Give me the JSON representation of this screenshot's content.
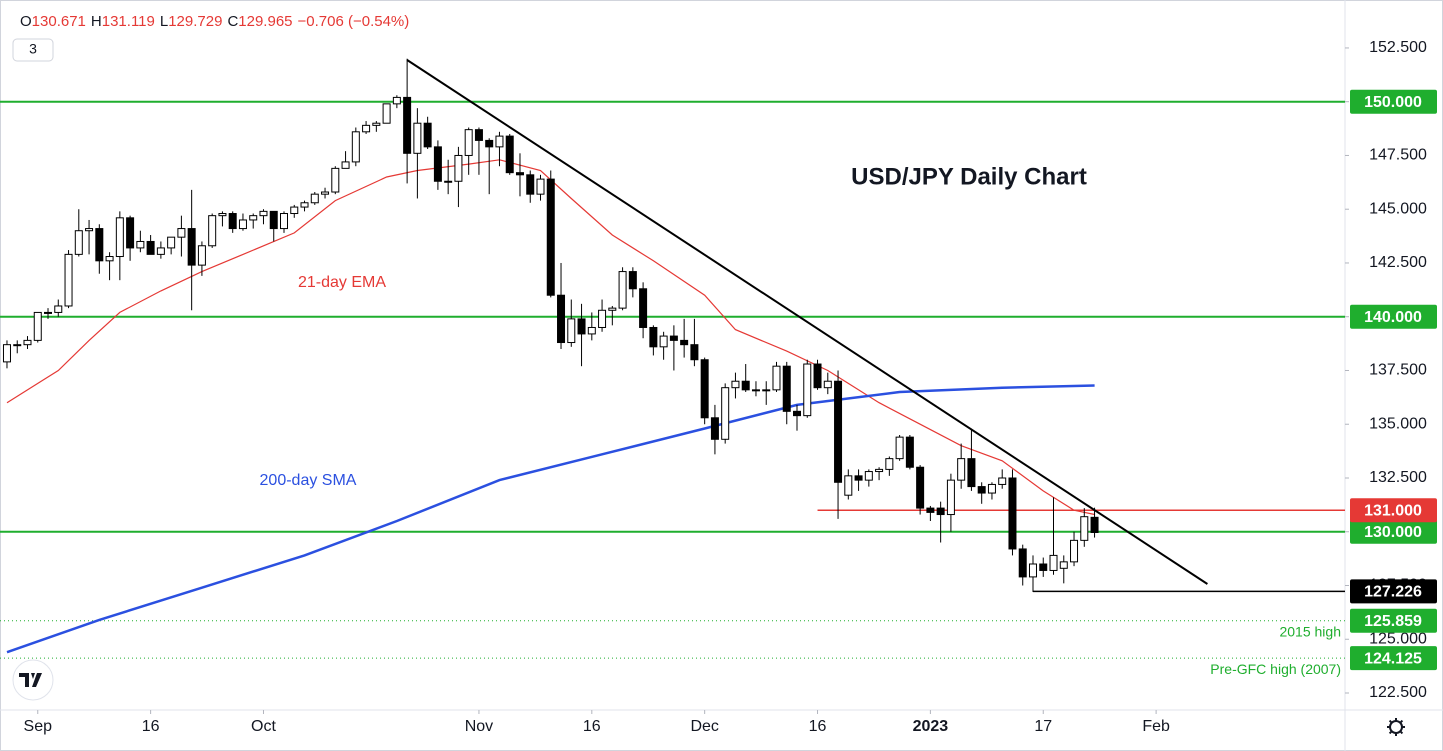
{
  "chart_data": {
    "type": "candlestick",
    "title": "USD/JPY Daily Chart",
    "legend_text": [
      "O",
      "130.671",
      "H",
      "131.119",
      "L",
      "129.729",
      "C",
      "129.965",
      "−0.706 (−0.54%)"
    ],
    "badge": "3",
    "up_color": "#ffffff",
    "down_color": "#000000",
    "open": [
      137.9,
      138.7,
      138.7,
      138.9,
      140.2,
      140.2,
      140.5,
      142.9,
      144.0,
      144.1,
      142.6,
      142.8,
      144.6,
      143.2,
      143.5,
      142.9,
      143.2,
      143.7,
      144.1,
      142.4,
      143.3,
      144.7,
      144.8,
      144.1,
      144.5,
      144.7,
      144.9,
      144.1,
      144.8,
      145.1,
      145.3,
      145.7,
      145.8,
      146.9,
      147.2,
      148.6,
      148.9,
      149.0,
      149.9,
      150.2,
      147.6,
      149.0,
      147.9,
      146.3,
      146.3,
      147.5,
      148.7,
      148.2,
      147.9,
      148.4,
      146.7,
      146.6,
      145.7,
      146.4,
      141.0,
      138.8,
      139.9,
      139.2,
      139.5,
      140.3,
      140.4,
      142.1,
      141.3,
      139.5,
      138.6,
      139.1,
      138.9,
      138.7,
      138.0,
      135.3,
      134.3,
      136.7,
      137.0,
      136.6,
      136.6,
      136.6,
      137.7,
      135.6,
      135.4,
      137.8,
      136.7,
      137.0,
      131.7,
      132.6,
      132.4,
      132.8,
      132.9,
      133.4,
      134.4,
      133.0,
      131.1,
      131.1,
      130.8,
      132.4,
      133.4,
      132.1,
      131.8,
      132.2,
      132.5,
      129.2,
      127.9,
      128.5,
      128.2,
      128.3,
      128.6,
      129.6,
      130.671
    ],
    "high": [
      138.9,
      138.9,
      139.1,
      140.2,
      140.4,
      140.8,
      143.1,
      145.0,
      144.5,
      144.3,
      143.0,
      144.9,
      144.7,
      144.0,
      143.8,
      143.5,
      143.7,
      144.7,
      145.9,
      143.5,
      144.8,
      144.9,
      144.9,
      144.8,
      144.8,
      145.0,
      144.9,
      144.9,
      145.2,
      145.4,
      145.8,
      146.0,
      147.0,
      147.7,
      148.8,
      149.1,
      149.1,
      149.9,
      150.3,
      152.0,
      149.7,
      149.3,
      148.2,
      147.3,
      147.9,
      148.8,
      148.8,
      148.3,
      148.6,
      148.5,
      147.6,
      146.8,
      146.6,
      146.8,
      142.5,
      140.8,
      140.6,
      140.2,
      140.8,
      140.5,
      142.3,
      142.3,
      141.6,
      139.6,
      139.3,
      139.6,
      139.9,
      139.9,
      138.1,
      135.9,
      136.9,
      137.4,
      137.8,
      137.0,
      137.0,
      137.9,
      137.9,
      135.9,
      138.0,
      138.0,
      137.4,
      137.5,
      132.9,
      132.9,
      132.9,
      133.0,
      133.5,
      134.5,
      134.5,
      133.1,
      131.2,
      131.4,
      132.7,
      134.1,
      134.8,
      132.3,
      132.3,
      132.9,
      132.9,
      129.4,
      128.9,
      128.8,
      131.6,
      128.9,
      130.0,
      131.1,
      131.119
    ],
    "low": [
      137.6,
      138.3,
      138.5,
      138.8,
      139.9,
      140.0,
      140.4,
      142.8,
      142.9,
      142.0,
      141.7,
      141.7,
      142.6,
      143.0,
      142.9,
      142.7,
      142.9,
      142.8,
      140.3,
      141.9,
      143.2,
      144.2,
      143.9,
      144.0,
      144.1,
      144.3,
      143.5,
      143.9,
      144.6,
      144.9,
      145.2,
      145.5,
      145.7,
      146.9,
      147.0,
      148.5,
      148.6,
      149.0,
      149.7,
      146.2,
      145.5,
      147.8,
      145.9,
      145.7,
      145.1,
      146.6,
      146.6,
      145.7,
      147.0,
      146.6,
      145.6,
      145.3,
      145.4,
      140.9,
      138.5,
      138.6,
      137.7,
      138.9,
      139.3,
      139.6,
      140.3,
      140.9,
      139.0,
      138.2,
      138.0,
      137.5,
      138.1,
      137.7,
      135.0,
      133.6,
      134.1,
      136.2,
      136.5,
      136.3,
      135.9,
      136.5,
      135.0,
      134.7,
      135.3,
      136.6,
      136.4,
      130.6,
      131.5,
      131.9,
      132.1,
      132.4,
      132.6,
      133.3,
      132.9,
      130.8,
      130.5,
      129.5,
      130.0,
      132.0,
      131.9,
      131.3,
      131.5,
      132.0,
      128.9,
      127.5,
      127.2,
      127.9,
      128.0,
      127.6,
      128.4,
      129.3,
      129.729
    ],
    "close": [
      138.7,
      138.7,
      138.9,
      140.2,
      140.2,
      140.5,
      142.9,
      144.0,
      144.1,
      142.6,
      142.8,
      144.6,
      143.2,
      143.5,
      142.9,
      143.2,
      143.7,
      144.1,
      142.4,
      143.3,
      144.7,
      144.8,
      144.1,
      144.5,
      144.7,
      144.9,
      144.1,
      144.8,
      145.1,
      145.3,
      145.7,
      145.8,
      146.9,
      147.2,
      148.6,
      148.9,
      149.0,
      149.9,
      150.2,
      147.6,
      149.0,
      147.9,
      146.3,
      146.3,
      147.5,
      148.7,
      148.2,
      147.9,
      148.4,
      146.7,
      146.6,
      145.7,
      146.4,
      141.0,
      138.8,
      139.9,
      139.2,
      139.5,
      140.3,
      140.4,
      142.1,
      141.3,
      139.5,
      138.6,
      139.1,
      138.9,
      138.7,
      138.0,
      135.3,
      134.3,
      136.7,
      137.0,
      136.6,
      136.6,
      136.6,
      137.7,
      135.6,
      135.4,
      137.8,
      136.7,
      137.0,
      132.3,
      132.6,
      132.4,
      132.8,
      132.9,
      133.4,
      134.4,
      133.0,
      131.1,
      130.9,
      130.8,
      132.4,
      133.4,
      132.1,
      131.8,
      132.2,
      132.5,
      129.2,
      127.9,
      128.5,
      128.2,
      128.9,
      128.6,
      129.6,
      130.7,
      129.965
    ],
    "series": [
      {
        "name": "21-day EMA",
        "color": "#e53935",
        "x": [
          0,
          5,
          8,
          11,
          15,
          19,
          23,
          28,
          32,
          37,
          40,
          45,
          48,
          52,
          55,
          59,
          63,
          68,
          71,
          76,
          80,
          85,
          89,
          93,
          97,
          101,
          104,
          106
        ],
        "values": [
          136.0,
          137.5,
          138.9,
          140.2,
          141.2,
          142.1,
          142.9,
          143.9,
          145.4,
          146.5,
          146.8,
          147.1,
          147.3,
          146.8,
          145.5,
          143.8,
          142.6,
          141.0,
          139.4,
          138.4,
          137.5,
          136.0,
          135.0,
          134.0,
          133.3,
          131.9,
          131.0,
          130.8
        ]
      },
      {
        "name": "200-day SMA",
        "color": "#2b50e0",
        "x": [
          0,
          9,
          19,
          29,
          38,
          48,
          58,
          68,
          77,
          87,
          97,
          106
        ],
        "values": [
          124.4,
          125.9,
          127.4,
          128.9,
          130.5,
          132.4,
          133.6,
          134.8,
          135.9,
          136.5,
          136.7,
          136.8
        ]
      }
    ],
    "levels": [
      {
        "value": 150,
        "label": "150.000",
        "color": "#1fae2e"
      },
      {
        "value": 140,
        "label": "140.000",
        "color": "#1fae2e"
      },
      {
        "value": 130,
        "label": "130.000",
        "color": "#1fae2e"
      },
      {
        "value": 131,
        "label": "131.000",
        "color": "#e53935",
        "from": 79
      },
      {
        "value": 127.226,
        "label": "127.226",
        "color": "#000000",
        "from": 100
      },
      {
        "value": 125.859,
        "label": "125.859",
        "color": "#1fae2e",
        "dotted": true,
        "annotation": "2015 high"
      },
      {
        "value": 124.125,
        "label": "124.125",
        "color": "#1fae2e",
        "dotted": true,
        "annotation": "Pre-GFC high (2007)"
      }
    ],
    "trendline": {
      "x": [
        39,
        117
      ],
      "values": [
        151.94,
        127.57
      ],
      "color": "#000000"
    },
    "xlim": [
      -0.68,
      130.41
    ],
    "ylim": [
      121.71,
      154.73
    ],
    "xticks": [
      {
        "value": 3,
        "label": "Sep"
      },
      {
        "value": 14,
        "label": "16"
      },
      {
        "value": 25,
        "label": "Oct"
      },
      {
        "value": 46,
        "label": "Nov"
      },
      {
        "value": 57,
        "label": "16"
      },
      {
        "value": 68,
        "label": "Dec"
      },
      {
        "value": 79,
        "label": "16"
      },
      {
        "value": 90,
        "label": "2023"
      },
      {
        "value": 101,
        "label": "17"
      },
      {
        "value": 112,
        "label": "Feb"
      }
    ],
    "yticks": [
      {
        "value": 122.5,
        "label": "122.500"
      },
      {
        "value": 125,
        "label": "125.000"
      },
      {
        "value": 127.5,
        "label": "127.500"
      },
      {
        "value": 130,
        "label": "130.000"
      },
      {
        "value": 132.5,
        "label": "132.500"
      },
      {
        "value": 135,
        "label": "135.000"
      },
      {
        "value": 137.5,
        "label": "137.500"
      },
      {
        "value": 140,
        "label": "140.000"
      },
      {
        "value": 142.5,
        "label": "142.500"
      },
      {
        "value": 145,
        "label": "145.000"
      },
      {
        "value": 147.5,
        "label": "147.500"
      },
      {
        "value": 150,
        "label": "150.000"
      },
      {
        "value": 152.5,
        "label": "152.500"
      }
    ]
  }
}
